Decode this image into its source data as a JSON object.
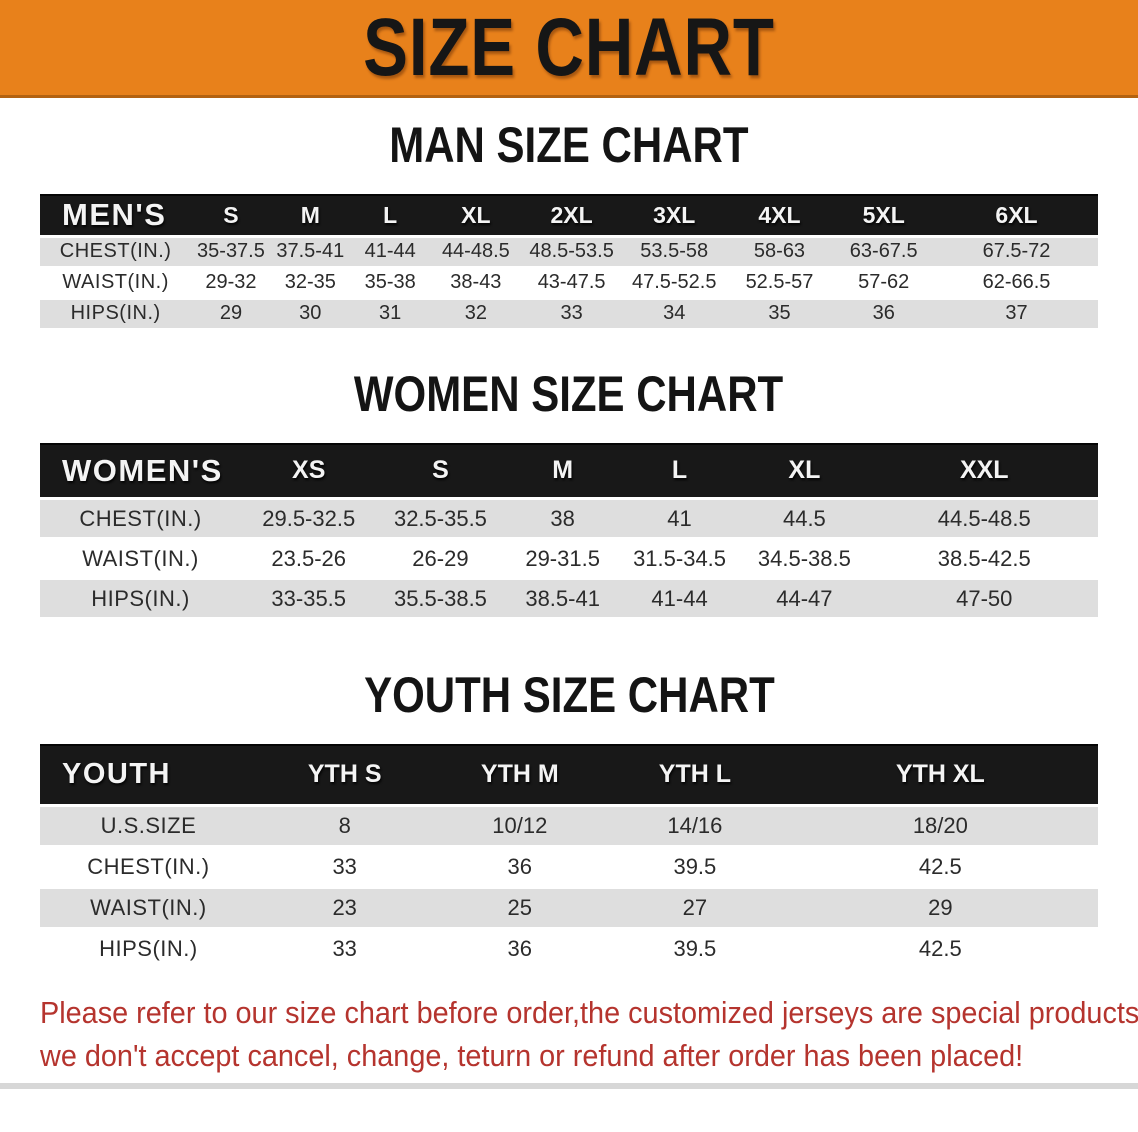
{
  "page": {
    "banner": {
      "title": "SIZE CHART"
    },
    "colors": {
      "banner_bg": "#E8811B",
      "banner_title": "#161616",
      "header_bar_bg": "#181818",
      "header_bar_text": "#F4F4F4",
      "row_stripe": "#DEDEDE",
      "cell_text": "#2B2B2B",
      "footer_text": "#B5342E"
    },
    "sections": [
      {
        "id": "men",
        "heading": "MAN SIZE CHART",
        "table": {
          "label": "MEN'S",
          "columns": [
            "S",
            "M",
            "L",
            "XL",
            "2XL",
            "3XL",
            "4XL",
            "5XL",
            "6XL"
          ],
          "rows": [
            {
              "label": "CHEST(IN.)",
              "values": [
                "35-37.5",
                "37.5-41",
                "41-44",
                "44-48.5",
                "48.5-53.5",
                "53.5-58",
                "58-63",
                "63-67.5",
                "67.5-72"
              ]
            },
            {
              "label": "WAIST(IN.)",
              "values": [
                "29-32",
                "32-35",
                "35-38",
                "38-43",
                "43-47.5",
                "47.5-52.5",
                "52.5-57",
                "57-62",
                "62-66.5"
              ]
            },
            {
              "label": "HIPS(IN.)",
              "values": [
                "29",
                "30",
                "31",
                "32",
                "33",
                "34",
                "35",
                "36",
                "37"
              ]
            }
          ]
        }
      },
      {
        "id": "women",
        "heading": "WOMEN SIZE CHART",
        "table": {
          "label": "WOMEN'S",
          "columns": [
            "XS",
            "S",
            "M",
            "L",
            "XL",
            "XXL"
          ],
          "rows": [
            {
              "label": "CHEST(IN.)",
              "values": [
                "29.5-32.5",
                "32.5-35.5",
                "38",
                "41",
                "44.5",
                "44.5-48.5"
              ]
            },
            {
              "label": "WAIST(IN.)",
              "values": [
                "23.5-26",
                "26-29",
                "29-31.5",
                "31.5-34.5",
                "34.5-38.5",
                "38.5-42.5"
              ]
            },
            {
              "label": "HIPS(IN.)",
              "values": [
                "33-35.5",
                "35.5-38.5",
                "38.5-41",
                "41-44",
                "44-47",
                "47-50"
              ]
            }
          ]
        }
      },
      {
        "id": "youth",
        "heading": "YOUTH SIZE CHART",
        "table": {
          "label": "YOUTH",
          "columns": [
            "YTH S",
            "YTH M",
            "YTH L",
            "YTH XL"
          ],
          "rows": [
            {
              "label": "U.S.SIZE",
              "values": [
                "8",
                "10/12",
                "14/16",
                "18/20"
              ]
            },
            {
              "label": "CHEST(IN.)",
              "values": [
                "33",
                "36",
                "39.5",
                "42.5"
              ]
            },
            {
              "label": "WAIST(IN.)",
              "values": [
                "23",
                "25",
                "27",
                "29"
              ]
            },
            {
              "label": "HIPS(IN.)",
              "values": [
                "33",
                "36",
                "39.5",
                "42.5"
              ]
            }
          ]
        }
      }
    ],
    "footer": {
      "line1": "Please refer to our size chart before order,the customized jerseys are special products,",
      "line2": "we don't accept cancel, change, teturn or refund after order has been placed!"
    }
  }
}
